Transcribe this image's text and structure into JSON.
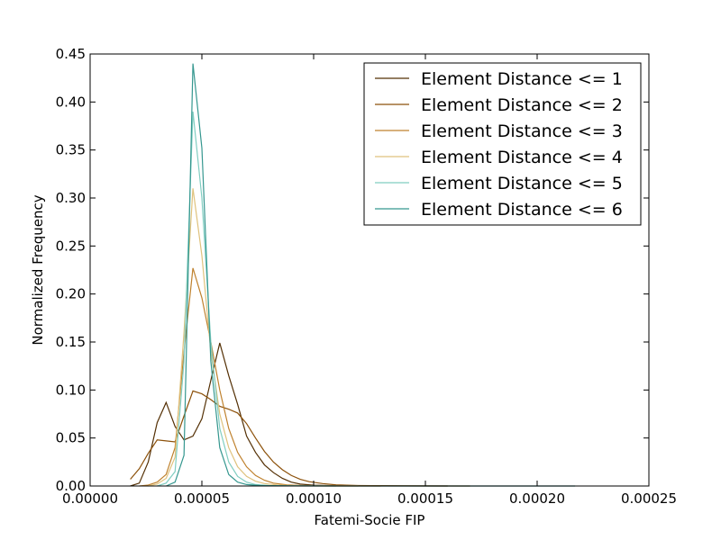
{
  "chart_data": {
    "type": "line",
    "title": "",
    "xlabel": "Fatemi-Socie FIP",
    "ylabel": "Normalized Frequency",
    "xlim": [
      0,
      0.00025
    ],
    "ylim": [
      0,
      0.45
    ],
    "x_ticks": [
      "0.00000",
      "0.00005",
      "0.00010",
      "0.00015",
      "0.00020",
      "0.00025"
    ],
    "x_tick_values": [
      0,
      5e-05,
      0.0001,
      0.00015,
      0.0002,
      0.00025
    ],
    "y_ticks": [
      "0.00",
      "0.05",
      "0.10",
      "0.15",
      "0.20",
      "0.25",
      "0.30",
      "0.35",
      "0.40",
      "0.45"
    ],
    "y_tick_values": [
      0,
      0.05,
      0.1,
      0.15,
      0.2,
      0.25,
      0.3,
      0.35,
      0.4,
      0.45
    ],
    "grid": false,
    "legend_position": "top-right",
    "series": [
      {
        "name": "Element Distance <= 1",
        "color": "#543005",
        "points": [
          [
            1.8e-05,
            0.0
          ],
          [
            2.2e-05,
            0.003
          ],
          [
            2.6e-05,
            0.025
          ],
          [
            3e-05,
            0.066
          ],
          [
            3.4e-05,
            0.087
          ],
          [
            3.8e-05,
            0.062
          ],
          [
            4.2e-05,
            0.048
          ],
          [
            4.6e-05,
            0.052
          ],
          [
            5e-05,
            0.07
          ],
          [
            5.4e-05,
            0.11
          ],
          [
            5.8e-05,
            0.149
          ],
          [
            6.2e-05,
            0.115
          ],
          [
            6.6e-05,
            0.085
          ],
          [
            7e-05,
            0.052
          ],
          [
            7.4e-05,
            0.035
          ],
          [
            7.8e-05,
            0.022
          ],
          [
            8.2e-05,
            0.014
          ],
          [
            8.6e-05,
            0.008
          ],
          [
            9e-05,
            0.004
          ],
          [
            9.4e-05,
            0.002
          ],
          [
            0.0001,
            0.0008
          ],
          [
            0.00011,
            0.0003
          ],
          [
            0.00013,
            0.0001
          ],
          [
            0.00016,
            0.0
          ]
        ]
      },
      {
        "name": "Element Distance <= 2",
        "color": "#8c510a",
        "points": [
          [
            1.8e-05,
            0.007
          ],
          [
            2.2e-05,
            0.018
          ],
          [
            2.6e-05,
            0.034
          ],
          [
            3e-05,
            0.048
          ],
          [
            3.4e-05,
            0.047
          ],
          [
            3.8e-05,
            0.046
          ],
          [
            4.2e-05,
            0.073
          ],
          [
            4.6e-05,
            0.099
          ],
          [
            5e-05,
            0.096
          ],
          [
            5.4e-05,
            0.09
          ],
          [
            5.8e-05,
            0.083
          ],
          [
            6.2e-05,
            0.08
          ],
          [
            6.6e-05,
            0.076
          ],
          [
            7e-05,
            0.065
          ],
          [
            7.4e-05,
            0.05
          ],
          [
            7.8e-05,
            0.036
          ],
          [
            8.2e-05,
            0.025
          ],
          [
            8.6e-05,
            0.017
          ],
          [
            9e-05,
            0.011
          ],
          [
            9.4e-05,
            0.007
          ],
          [
            9.8e-05,
            0.0045
          ],
          [
            0.000104,
            0.0025
          ],
          [
            0.00011,
            0.0012
          ],
          [
            0.00012,
            0.0005
          ],
          [
            0.00014,
            0.0001
          ],
          [
            0.00017,
            0.0
          ]
        ]
      },
      {
        "name": "Element Distance <= 3",
        "color": "#bf812d",
        "points": [
          [
            2.2e-05,
            0.0
          ],
          [
            2.6e-05,
            0.001
          ],
          [
            3e-05,
            0.004
          ],
          [
            3.4e-05,
            0.012
          ],
          [
            3.8e-05,
            0.04
          ],
          [
            4.2e-05,
            0.14
          ],
          [
            4.6e-05,
            0.227
          ],
          [
            5e-05,
            0.196
          ],
          [
            5.4e-05,
            0.15
          ],
          [
            5.8e-05,
            0.1
          ],
          [
            6.2e-05,
            0.06
          ],
          [
            6.6e-05,
            0.035
          ],
          [
            7e-05,
            0.02
          ],
          [
            7.4e-05,
            0.011
          ],
          [
            7.8e-05,
            0.006
          ],
          [
            8.2e-05,
            0.003
          ],
          [
            8.8e-05,
            0.0012
          ],
          [
            9.6e-05,
            0.0004
          ],
          [
            0.00011,
            0.0001
          ],
          [
            0.00013,
            0.0
          ]
        ]
      },
      {
        "name": "Element Distance <= 4",
        "color": "#dfc27d",
        "points": [
          [
            2.6e-05,
            0.0
          ],
          [
            3e-05,
            0.002
          ],
          [
            3.4e-05,
            0.008
          ],
          [
            3.8e-05,
            0.03
          ],
          [
            4.2e-05,
            0.16
          ],
          [
            4.6e-05,
            0.31
          ],
          [
            5e-05,
            0.24
          ],
          [
            5.4e-05,
            0.14
          ],
          [
            5.8e-05,
            0.075
          ],
          [
            6.2e-05,
            0.04
          ],
          [
            6.6e-05,
            0.02
          ],
          [
            7e-05,
            0.01
          ],
          [
            7.4e-05,
            0.005
          ],
          [
            7.8e-05,
            0.0025
          ],
          [
            8.4e-05,
            0.001
          ],
          [
            9e-05,
            0.0004
          ],
          [
            0.0001,
            0.0001
          ],
          [
            0.00012,
            0.0
          ]
        ]
      },
      {
        "name": "Element Distance <= 5",
        "color": "#80cdc1",
        "points": [
          [
            3e-05,
            0.0
          ],
          [
            3.4e-05,
            0.003
          ],
          [
            3.8e-05,
            0.015
          ],
          [
            4.2e-05,
            0.13
          ],
          [
            4.6e-05,
            0.39
          ],
          [
            5e-05,
            0.3
          ],
          [
            5.4e-05,
            0.15
          ],
          [
            5.8e-05,
            0.06
          ],
          [
            6.2e-05,
            0.025
          ],
          [
            6.6e-05,
            0.01
          ],
          [
            7e-05,
            0.004
          ],
          [
            7.4e-05,
            0.0015
          ],
          [
            8e-05,
            0.0005
          ],
          [
            9e-05,
            0.0001
          ],
          [
            0.00011,
            0.0
          ]
        ]
      },
      {
        "name": "Element Distance <= 6",
        "color": "#35978f",
        "points": [
          [
            3.4e-05,
            0.0
          ],
          [
            3.8e-05,
            0.004
          ],
          [
            4.2e-05,
            0.032
          ],
          [
            4.6e-05,
            0.44
          ],
          [
            5e-05,
            0.352
          ],
          [
            5.4e-05,
            0.13
          ],
          [
            5.8e-05,
            0.04
          ],
          [
            6.2e-05,
            0.012
          ],
          [
            6.6e-05,
            0.004
          ],
          [
            7e-05,
            0.0015
          ],
          [
            7.6e-05,
            0.0005
          ],
          [
            9e-05,
            0.0001
          ],
          [
            0.00012,
            0.0
          ],
          [
            0.000217,
            0.0
          ]
        ]
      }
    ]
  }
}
